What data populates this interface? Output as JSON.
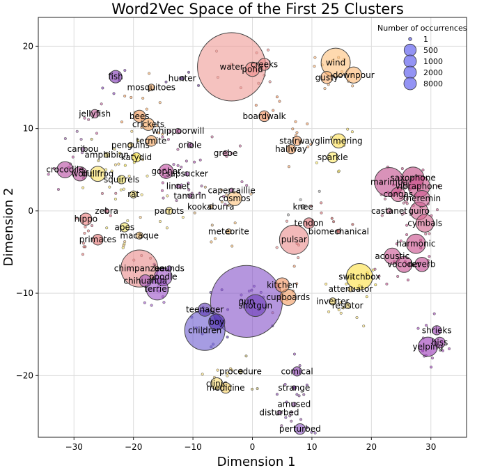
{
  "chart_data": {
    "type": "scatter",
    "title": "Word2Vec Space of the First 25 Clusters",
    "xlabel": "Dimension 1",
    "ylabel": "Dimension 2",
    "xlim": [
      -36,
      36
    ],
    "ylim": [
      -27.5,
      23.5
    ],
    "xticks": [
      -30,
      -20,
      -10,
      0,
      10,
      20,
      30
    ],
    "yticks": [
      -20,
      -10,
      0,
      10,
      20
    ],
    "grid": true,
    "legend": {
      "title": "Number of occurrences",
      "placement": "top-right",
      "entries": [
        {
          "label": "1",
          "value": 1
        },
        {
          "label": "500",
          "value": 500
        },
        {
          "label": "1000",
          "value": 1000
        },
        {
          "label": "2000",
          "value": 2000
        },
        {
          "label": "8000",
          "value": 8000
        }
      ]
    },
    "points": [
      {
        "word": "water",
        "x": -3.5,
        "y": 17.5,
        "count": 9000,
        "color": "#ef9a94"
      },
      {
        "word": "creeks",
        "x": 2.0,
        "y": 17.8,
        "count": 200,
        "color": "#ef8a8a"
      },
      {
        "word": "pond",
        "x": 0.0,
        "y": 17.2,
        "count": 300,
        "color": "#ee8a8a"
      },
      {
        "word": "wind",
        "x": 14.0,
        "y": 18.0,
        "count": 1500,
        "color": "#fdc07a"
      },
      {
        "word": "gusty",
        "x": 12.5,
        "y": 16.2,
        "count": 200,
        "color": "#fcae6a"
      },
      {
        "word": "downpour",
        "x": 17.0,
        "y": 16.5,
        "count": 400,
        "color": "#fdb56e"
      },
      {
        "word": "fish",
        "x": -23.0,
        "y": 16.3,
        "count": 220,
        "color": "#7a2fb0"
      },
      {
        "word": "hunter",
        "x": -11.8,
        "y": 16.1,
        "count": 8,
        "color": "#5a2a8a"
      },
      {
        "word": "mosquitoes",
        "x": -17.0,
        "y": 15.0,
        "count": 40,
        "color": "#f5a960"
      },
      {
        "word": "boardwalk",
        "x": 2.0,
        "y": 11.5,
        "count": 150,
        "color": "#f08a55"
      },
      {
        "word": "jellyfish",
        "x": -26.5,
        "y": 11.8,
        "count": 80,
        "color": "#c45a9a"
      },
      {
        "word": "bees",
        "x": -19.0,
        "y": 11.5,
        "count": 200,
        "color": "#f59a55"
      },
      {
        "word": "crickets",
        "x": -17.5,
        "y": 10.5,
        "count": 200,
        "color": "#fba85e"
      },
      {
        "word": "termite",
        "x": -17.0,
        "y": 8.5,
        "count": 150,
        "color": "#f4a258"
      },
      {
        "word": "penguins",
        "x": -20.5,
        "y": 8.0,
        "count": 20,
        "color": "#ffd86b"
      },
      {
        "word": "whippoorwill",
        "x": -12.5,
        "y": 9.7,
        "count": 20,
        "color": "#b84a9a"
      },
      {
        "word": "oriole",
        "x": -10.5,
        "y": 8.0,
        "count": 20,
        "color": "#a040a0"
      },
      {
        "word": "caribou",
        "x": -28.5,
        "y": 7.5,
        "count": 10,
        "color": "#a060b0"
      },
      {
        "word": "amphibian",
        "x": -24.5,
        "y": 6.8,
        "count": 20,
        "color": "#c0b050"
      },
      {
        "word": "katydid",
        "x": -19.5,
        "y": 6.5,
        "count": 100,
        "color": "#f5e030"
      },
      {
        "word": "grebe",
        "x": -4.5,
        "y": 7.0,
        "count": 20,
        "color": "#c05a90"
      },
      {
        "word": "stairway",
        "x": 7.5,
        "y": 8.5,
        "count": 100,
        "color": "#f49a5a"
      },
      {
        "word": "hallway",
        "x": 6.5,
        "y": 7.5,
        "count": 100,
        "color": "#f59e5e"
      },
      {
        "word": "glimmering",
        "x": 14.5,
        "y": 8.5,
        "count": 300,
        "color": "#fde050"
      },
      {
        "word": "sparkle",
        "x": 13.5,
        "y": 6.5,
        "count": 150,
        "color": "#fdea60"
      },
      {
        "word": "crocodile",
        "x": -31.5,
        "y": 5.0,
        "count": 400,
        "color": "#b548a0"
      },
      {
        "word": "wolf",
        "x": -29.0,
        "y": 4.5,
        "count": 300,
        "color": "#c050a0"
      },
      {
        "word": "bullfrog",
        "x": -26.0,
        "y": 4.5,
        "count": 350,
        "color": "#f8e060"
      },
      {
        "word": "squirrels",
        "x": -22.0,
        "y": 3.8,
        "count": 80,
        "color": "#f2e460"
      },
      {
        "word": "gopher",
        "x": -14.5,
        "y": 4.8,
        "count": 300,
        "color": "#c04aa0"
      },
      {
        "word": "sapsucker",
        "x": -11.0,
        "y": 4.5,
        "count": 10,
        "color": "#a04ab0"
      },
      {
        "word": "rat",
        "x": -20.0,
        "y": 2.0,
        "count": 50,
        "color": "#ffe870"
      },
      {
        "word": "linnet",
        "x": -12.5,
        "y": 3.0,
        "count": 10,
        "color": "#a04aa0"
      },
      {
        "word": "capercaillie",
        "x": -3.5,
        "y": 2.5,
        "count": 10,
        "color": "#b050a0"
      },
      {
        "word": "cosmos",
        "x": -3.0,
        "y": 1.5,
        "count": 300,
        "color": "#fdc27a"
      },
      {
        "word": "tamarin",
        "x": -10.5,
        "y": 1.8,
        "count": 10,
        "color": "#a05aa0"
      },
      {
        "word": "zebra",
        "x": -24.5,
        "y": 0.0,
        "count": 10,
        "color": "#d06080"
      },
      {
        "word": "parrots",
        "x": -14.0,
        "y": 0.0,
        "count": 50,
        "color": "#fae070"
      },
      {
        "word": "kookaburra",
        "x": -7.0,
        "y": 0.5,
        "count": 10,
        "color": "#d0a060"
      },
      {
        "word": "hippo",
        "x": -28.0,
        "y": -1.0,
        "count": 200,
        "color": "#ec7a7a"
      },
      {
        "word": "apes",
        "x": -21.5,
        "y": -2.0,
        "count": 100,
        "color": "#f6e660"
      },
      {
        "word": "knee",
        "x": 8.5,
        "y": 0.5,
        "count": 10,
        "color": "#a0a0a0"
      },
      {
        "word": "tendon",
        "x": 9.5,
        "y": -1.5,
        "count": 150,
        "color": "#e06a70"
      },
      {
        "word": "pulsar",
        "x": 7.0,
        "y": -3.5,
        "count": 1500,
        "color": "#ea8a8a"
      },
      {
        "word": "meteorite",
        "x": -4.0,
        "y": -2.5,
        "count": 20,
        "color": "#f0b060"
      },
      {
        "word": "macaque",
        "x": -19.0,
        "y": -3.0,
        "count": 50,
        "color": "#f4c070"
      },
      {
        "word": "primates",
        "x": -26.0,
        "y": -3.5,
        "count": 150,
        "color": "#e47070"
      },
      {
        "word": "biomechanical",
        "x": 14.5,
        "y": -2.5,
        "count": 10,
        "color": "#b04040"
      },
      {
        "word": "marimba",
        "x": 23.0,
        "y": 3.5,
        "count": 1500,
        "color": "#c04a8a"
      },
      {
        "word": "saxophone",
        "x": 27.0,
        "y": 4.0,
        "count": 800,
        "color": "#c04580"
      },
      {
        "word": "vibraphone",
        "x": 28.0,
        "y": 3.0,
        "count": 800,
        "color": "#c84a85"
      },
      {
        "word": "congas",
        "x": 24.5,
        "y": 2.0,
        "count": 300,
        "color": "#d05a90"
      },
      {
        "word": "theremin",
        "x": 28.5,
        "y": 1.5,
        "count": 400,
        "color": "#cc5a90"
      },
      {
        "word": "castanet",
        "x": 23.0,
        "y": 0.0,
        "count": 20,
        "color": "#c06a90"
      },
      {
        "word": "guiro",
        "x": 28.0,
        "y": 0.0,
        "count": 500,
        "color": "#d06090"
      },
      {
        "word": "cymbals",
        "x": 29.0,
        "y": -1.5,
        "count": 500,
        "color": "#d2608a"
      },
      {
        "word": "harmonic",
        "x": 27.5,
        "y": -4.0,
        "count": 600,
        "color": "#c84a88"
      },
      {
        "word": "acoustic",
        "x": 23.5,
        "y": -5.5,
        "count": 400,
        "color": "#c95090"
      },
      {
        "word": "vocoder",
        "x": 25.5,
        "y": -6.5,
        "count": 400,
        "color": "#c5488c"
      },
      {
        "word": "reverb",
        "x": 28.5,
        "y": -6.5,
        "count": 300,
        "color": "#c0408a"
      },
      {
        "word": "switchbox",
        "x": 18.0,
        "y": -8.0,
        "count": 1200,
        "color": "#fce040"
      },
      {
        "word": "attenuator",
        "x": 16.5,
        "y": -9.5,
        "count": 20,
        "color": "#fad060"
      },
      {
        "word": "inverter",
        "x": 13.5,
        "y": -11.0,
        "count": 50,
        "color": "#fde060"
      },
      {
        "word": "resistor",
        "x": 16.0,
        "y": -11.5,
        "count": 30,
        "color": "#fbe070"
      },
      {
        "word": "chimpanzee",
        "x": -19.0,
        "y": -7.0,
        "count": 2500,
        "color": "#ea8a8a"
      },
      {
        "word": "chihuahua",
        "x": -18.0,
        "y": -8.5,
        "count": 200,
        "color": "#a458c0"
      },
      {
        "word": "poodle",
        "x": -15.0,
        "y": -8.0,
        "count": 500,
        "color": "#9a4ec5"
      },
      {
        "word": "terrier",
        "x": -16.0,
        "y": -9.5,
        "count": 800,
        "color": "#9b50c8"
      },
      {
        "word": "hounds",
        "x": -14.0,
        "y": -7.0,
        "count": 20,
        "color": "#7a40b0"
      },
      {
        "word": "kitchen",
        "x": 5.0,
        "y": -9.0,
        "count": 300,
        "color": "#f0905a"
      },
      {
        "word": "cupboards",
        "x": 6.0,
        "y": -10.5,
        "count": 400,
        "color": "#f29a5e"
      },
      {
        "word": "gun",
        "x": -1.0,
        "y": -11.0,
        "count": 10000,
        "color": "#8450c8"
      },
      {
        "word": "shotgun",
        "x": 0.5,
        "y": -11.5,
        "count": 800,
        "color": "#6a3ab8"
      },
      {
        "word": "teenager",
        "x": -8.0,
        "y": -12.0,
        "count": 250,
        "color": "#5a35b0"
      },
      {
        "word": "boy",
        "x": -6.0,
        "y": -13.5,
        "count": 400,
        "color": "#4a2aa8"
      },
      {
        "word": "children",
        "x": -8.0,
        "y": -14.5,
        "count": 3000,
        "color": "#6a5acf"
      },
      {
        "word": "shrieks",
        "x": 31.0,
        "y": -14.5,
        "count": 100,
        "color": "#9a3ab0"
      },
      {
        "word": "hiss",
        "x": 31.5,
        "y": -16.0,
        "count": 150,
        "color": "#a540b5"
      },
      {
        "word": "yelping",
        "x": 29.5,
        "y": -16.5,
        "count": 600,
        "color": "#9a35b8"
      },
      {
        "word": "procedure",
        "x": -2.0,
        "y": -19.5,
        "count": 10,
        "color": "#b0a050"
      },
      {
        "word": "comical",
        "x": 7.5,
        "y": -19.5,
        "count": 100,
        "color": "#8a3ab0"
      },
      {
        "word": "clinic",
        "x": -6.0,
        "y": -21.0,
        "count": 200,
        "color": "#fde070"
      },
      {
        "word": "medicine",
        "x": -4.5,
        "y": -21.5,
        "count": 150,
        "color": "#f8d060"
      },
      {
        "word": "strange",
        "x": 7.0,
        "y": -21.5,
        "count": 10,
        "color": "#7a3aa0"
      },
      {
        "word": "amused",
        "x": 7.0,
        "y": -23.5,
        "count": 10,
        "color": "#8a4aa0"
      },
      {
        "word": "disturbed",
        "x": 4.5,
        "y": -24.5,
        "count": 10,
        "color": "#9a5aa0"
      },
      {
        "word": "perturbed",
        "x": 8.0,
        "y": -26.5,
        "count": 150,
        "color": "#8a50c0"
      }
    ]
  }
}
